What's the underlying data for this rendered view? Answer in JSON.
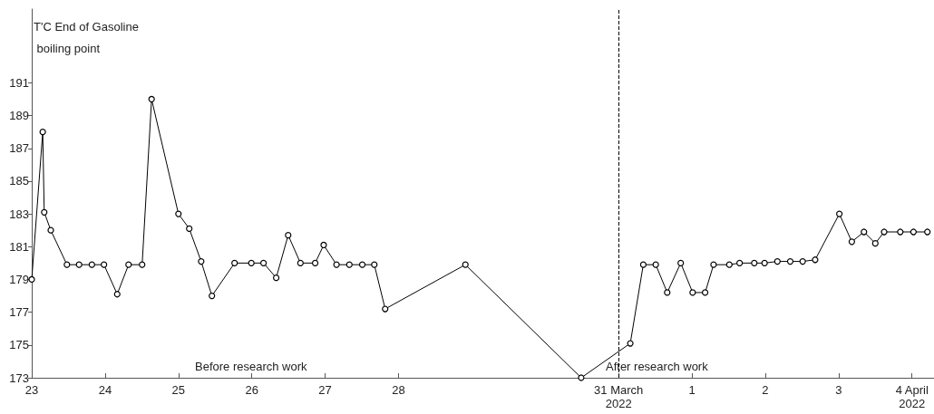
{
  "chart_data": {
    "type": "line",
    "ylabel": "T'C End of Gasoline\n boiling point",
    "x": [
      "2022-03-23T00:00",
      "2022-03-23T03:36",
      "2022-03-23T04:05",
      "2022-03-23T06:14",
      "2022-03-23T11:31",
      "2022-03-23T15:29",
      "2022-03-23T19:41",
      "2022-03-23T23:38",
      "2022-03-24T03:58",
      "2022-03-24T07:41",
      "2022-03-24T12:07",
      "2022-03-24T15:13",
      "2022-03-25T00:00",
      "2022-03-25T03:32",
      "2022-03-25T07:26",
      "2022-03-25T10:57",
      "2022-03-25T18:22",
      "2022-03-25T23:51",
      "2022-03-26T03:50",
      "2022-03-26T07:59",
      "2022-03-26T11:54",
      "2022-03-26T15:55",
      "2022-03-26T20:44",
      "2022-03-26T23:31",
      "2022-03-27T03:43",
      "2022-03-27T07:55",
      "2022-03-27T12:09",
      "2022-03-27T16:05",
      "2022-03-27T19:38",
      "2022-03-28T21:53",
      "2022-03-30T11:46",
      "2022-03-31T03:50",
      "2022-03-31T08:05",
      "2022-03-31T12:10",
      "2022-03-31T15:55",
      "2022-03-31T20:20",
      "2022-04-01T00:14",
      "2022-04-01T04:19",
      "2022-04-01T07:05",
      "2022-04-01T12:14",
      "2022-04-01T15:36",
      "2022-04-01T20:24",
      "2022-04-01T23:46",
      "2022-04-02T03:58",
      "2022-04-02T08:10",
      "2022-04-02T12:14",
      "2022-04-02T16:19",
      "2022-04-03T00:14",
      "2022-04-03T04:19",
      "2022-04-03T08:17",
      "2022-04-03T12:00",
      "2022-04-03T14:53",
      "2022-04-03T20:10",
      "2022-04-04T00:29",
      "2022-04-04T05:02"
    ],
    "values": [
      179,
      188,
      183.1,
      182.0,
      179.9,
      179.9,
      179.9,
      179.9,
      178.1,
      179.9,
      179.9,
      190,
      183.0,
      182.1,
      180.1,
      178.0,
      180.0,
      180.0,
      180.0,
      179.1,
      181.7,
      180.0,
      180.0,
      181.1,
      179.9,
      179.9,
      179.9,
      179.9,
      177.2,
      179.9,
      173.0,
      175.1,
      179.9,
      179.9,
      178.2,
      180.0,
      178.2,
      178.2,
      179.9,
      179.9,
      180.0,
      180.0,
      180.0,
      180.1,
      180.1,
      180.1,
      180.2,
      183.0,
      181.3,
      181.9,
      181.2,
      181.9,
      181.9,
      181.9,
      181.9
    ],
    "color": "#000000",
    "marker": "circle",
    "line_style": "solid",
    "grid": false,
    "xlim": [
      "2022-03-23T00:00",
      "2022-04-04T07:12"
    ],
    "xticks": [
      {
        "value": "2022-03-23",
        "label": "23"
      },
      {
        "value": "2022-03-24",
        "label": "24"
      },
      {
        "value": "2022-03-25",
        "label": "25"
      },
      {
        "value": "2022-03-26",
        "label": "26"
      },
      {
        "value": "2022-03-27",
        "label": "27"
      },
      {
        "value": "2022-03-28",
        "label": "28"
      },
      {
        "value": "2022-03-31",
        "label": "31 March\n2022"
      },
      {
        "value": "2022-04-01",
        "label": "1"
      },
      {
        "value": "2022-04-02",
        "label": "2"
      },
      {
        "value": "2022-04-03",
        "label": "3"
      },
      {
        "value": "2022-04-04",
        "label": "4 April\n2022"
      }
    ],
    "ylim": [
      173,
      195.5
    ],
    "yticks": [
      173,
      175,
      177,
      179,
      181,
      183,
      185,
      187,
      189,
      191
    ],
    "ref_lines": [
      {
        "axis": "x",
        "value": "2022-03-31",
        "line_style": "dashed",
        "color": "#000000"
      }
    ],
    "annotations": [
      "Before research work",
      "After research work"
    ]
  }
}
